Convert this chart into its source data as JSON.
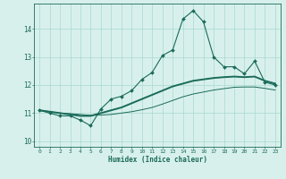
{
  "title": "",
  "xlabel": "Humidex (Indice chaleur)",
  "ylabel": "",
  "background_color": "#d8f0ec",
  "grid_color": "#a8d8d0",
  "line_color": "#1a6b5a",
  "xlim": [
    -0.5,
    23.5
  ],
  "ylim": [
    9.8,
    14.9
  ],
  "yticks": [
    10,
    11,
    12,
    13,
    14
  ],
  "xticks": [
    0,
    1,
    2,
    3,
    4,
    5,
    6,
    7,
    8,
    9,
    10,
    11,
    12,
    13,
    14,
    15,
    16,
    17,
    18,
    19,
    20,
    21,
    22,
    23
  ],
  "series1_x": [
    0,
    1,
    2,
    3,
    4,
    5,
    6,
    7,
    8,
    9,
    10,
    11,
    12,
    13,
    14,
    15,
    16,
    17,
    18,
    19,
    20,
    21,
    22,
    23
  ],
  "series1_y": [
    11.1,
    11.0,
    10.9,
    10.9,
    10.75,
    10.55,
    11.15,
    11.5,
    11.6,
    11.8,
    12.2,
    12.45,
    13.05,
    13.25,
    14.35,
    14.65,
    14.25,
    13.0,
    12.65,
    12.65,
    12.4,
    12.85,
    12.1,
    12.0
  ],
  "series2_x": [
    0,
    1,
    2,
    3,
    4,
    5,
    6,
    7,
    8,
    9,
    10,
    11,
    12,
    13,
    14,
    15,
    16,
    17,
    18,
    19,
    20,
    21,
    22,
    23
  ],
  "series2_y": [
    11.1,
    11.05,
    11.0,
    10.95,
    10.9,
    10.9,
    11.0,
    11.1,
    11.2,
    11.35,
    11.5,
    11.65,
    11.8,
    11.95,
    12.05,
    12.15,
    12.2,
    12.25,
    12.28,
    12.3,
    12.28,
    12.3,
    12.15,
    12.05
  ],
  "series3_x": [
    0,
    1,
    2,
    3,
    4,
    5,
    6,
    7,
    8,
    9,
    10,
    11,
    12,
    13,
    14,
    15,
    16,
    17,
    18,
    19,
    20,
    21,
    22,
    23
  ],
  "series3_y": [
    11.1,
    11.05,
    11.0,
    10.98,
    10.95,
    10.92,
    10.93,
    10.95,
    11.0,
    11.05,
    11.12,
    11.2,
    11.32,
    11.45,
    11.58,
    11.68,
    11.75,
    11.82,
    11.87,
    11.92,
    11.93,
    11.93,
    11.88,
    11.82
  ]
}
